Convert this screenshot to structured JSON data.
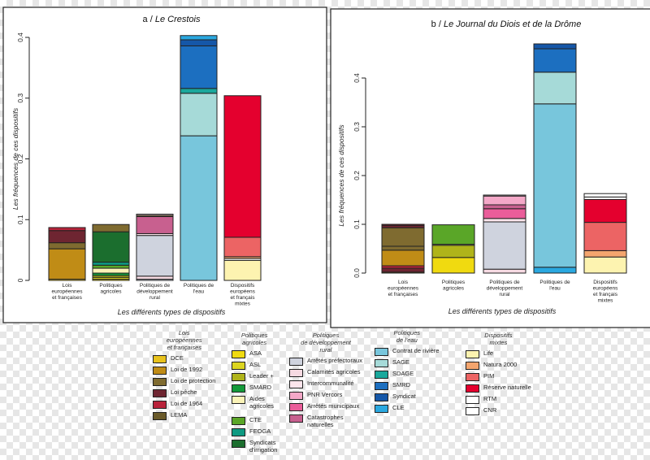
{
  "chart_data": [
    {
      "type": "stacked-bar",
      "title_prefix": "a / ",
      "title_italic": "Le Crestois",
      "ylabel": "Les fréquences de ces dispositifs",
      "xlabel": "Les différents types de dispositifs",
      "ylim": [
        0,
        0.42
      ],
      "yticks": [
        "0",
        "0.1",
        "0.2",
        "0.3",
        "0.4"
      ],
      "categories": [
        "Lois\neuropéennes\net françaises",
        "Politiques\nagricoles",
        "Politiques de\ndéveloppement\nrural",
        "Politiques de\nl'eau",
        "Dispositifs\neuropéens\net français\nmixtes"
      ],
      "stacks": [
        [
          [
            "DCE",
            0.002
          ],
          [
            "Loi de 1992",
            0.05
          ],
          [
            "Loi de protection",
            0.01
          ],
          [
            "Loi pêche",
            0.02
          ],
          [
            "Loi de 1964",
            0.005
          ]
        ],
        [
          [
            "ASA",
            0.002
          ],
          [
            "ASL",
            0.003
          ],
          [
            "Leader +",
            0.003
          ],
          [
            "SMARD",
            0.004
          ],
          [
            "Aides agricoles",
            0.008
          ],
          [
            "CTE",
            0.005
          ],
          [
            "FEOGA",
            0.005
          ],
          [
            "Syndicats d'irrigation",
            0.05
          ],
          [
            "Loi de protection",
            0.012
          ]
        ],
        [
          [
            "Arrêtés préfectoraux",
            0.002
          ],
          [
            "Calamités agricoles",
            0.005
          ],
          [
            "Arrêtés préfectoraux",
            0.067
          ],
          [
            "Intercommunalité",
            0.003
          ],
          [
            "Catastrophes naturelles",
            0.028
          ],
          [
            "Loi de protection",
            0.002
          ],
          [
            "Intercommunalité",
            0.002
          ]
        ],
        [
          [
            "Contrat de rivière",
            0.238
          ],
          [
            "SAGE",
            0.07
          ],
          [
            "SDAGE",
            0.008
          ],
          [
            "SMRD",
            0.07
          ],
          [
            "Syndicat",
            0.01
          ],
          [
            "CLE",
            0.007
          ]
        ],
        [
          [
            "Life",
            0.033
          ],
          [
            "RTM",
            0.003
          ],
          [
            "Natura 2000",
            0.003
          ],
          [
            "PIM",
            0.032
          ],
          [
            "Réserve naturelle",
            0.233
          ]
        ]
      ]
    },
    {
      "type": "stacked-bar",
      "title_prefix": "b / ",
      "title_italic": "Le Journal du Diois et de la Drôme",
      "ylabel": "Les fréquences de ces dispositifs",
      "xlabel": "Les différents types de dispositifs",
      "ylim": [
        0,
        0.42
      ],
      "yticks": [
        "0.0",
        "0.1",
        "0.2",
        "0.3",
        "0.4"
      ],
      "categories": [
        "Lois\neuropéennes\net françaises",
        "Politiques\nagricoles",
        "Politiques de\ndéveloppement\nrural",
        "Politiques de\nl'eau",
        "Dispositifs\neuropéens\net français\nmixtes"
      ],
      "stacks": [
        [
          [
            "DCE",
            0.002
          ],
          [
            "Loi pêche",
            0.008
          ],
          [
            "Loi de 1964",
            0.005
          ],
          [
            "Loi de 1992",
            0.032
          ],
          [
            "Loi de protection",
            0.008
          ],
          [
            "Loi de protection",
            0.038
          ],
          [
            "Loi pêche",
            0.005
          ],
          [
            "Loi de 1964",
            0.002
          ]
        ],
        [
          [
            "ASA",
            0.032
          ],
          [
            "Leader +",
            0.025
          ],
          [
            "Aides agricoles",
            0.002
          ],
          [
            "CTE",
            0.04
          ]
        ],
        [
          [
            "Calamités agricoles",
            0.008
          ],
          [
            "Arrêtés préfectoraux",
            0.097
          ],
          [
            "Intercommunalité",
            0.007
          ],
          [
            "Arrêtés municipaux",
            0.02
          ],
          [
            "Catastrophes naturelles",
            0.008
          ],
          [
            "PNR Vercors",
            0.018
          ],
          [
            "Calamités agricoles",
            0.002
          ]
        ],
        [
          [
            "CLE",
            0.012
          ],
          [
            "Contrat de rivière",
            0.335
          ],
          [
            "SAGE",
            0.065
          ],
          [
            "SMRD",
            0.048
          ],
          [
            "Syndicat",
            0.01
          ]
        ],
        [
          [
            "Life",
            0.033
          ],
          [
            "Natura 2000",
            0.013
          ],
          [
            "PIM",
            0.058
          ],
          [
            "Réserve naturelle",
            0.047
          ],
          [
            "CNR",
            0.005
          ],
          [
            "RTM",
            0.007
          ]
        ]
      ]
    }
  ],
  "legend": [
    {
      "title": "Lois\neuropéennes\net françaises",
      "items": [
        {
          "label": "DCE",
          "color": "#e8c21c"
        },
        {
          "label": "Loi de 1992",
          "color": "#c08c16"
        },
        {
          "label": "Loi de protection",
          "color": "#7f6b30"
        },
        {
          "label": "Loi pêche",
          "color": "#6e2531"
        },
        {
          "label": "Loi de 1964",
          "color": "#b8223a"
        },
        {
          "label": "LEMA",
          "color": "#6a5a2a"
        }
      ]
    },
    {
      "title": "Politiques\nagricoles",
      "items": [
        {
          "label": "ASA",
          "color": "#f0da10"
        },
        {
          "label": "ASL",
          "color": "#dcd520"
        },
        {
          "label": "Leader +",
          "color": "#b0b41a"
        },
        {
          "label": "SMARD",
          "color": "#149a3a"
        },
        {
          "label": "Aides\nagricoles",
          "color": "#fbf3b8"
        },
        {
          "label": "CTE",
          "color": "#5aa628"
        },
        {
          "label": "FEOGA",
          "color": "#0e9a82"
        },
        {
          "label": "Syndicats\nd'irrigation",
          "color": "#1b6e2e"
        }
      ]
    },
    {
      "title": "Politiques\nde développement\nrural",
      "items": [
        {
          "label": "Arrêtés préfectoraux",
          "color": "#cfd3de"
        },
        {
          "label": "Calamités agricoles",
          "color": "#f6dae2"
        },
        {
          "label": "Intercommunalité",
          "color": "#fde5ec"
        },
        {
          "label": "PNR Vercors",
          "color": "#f4a8c8"
        },
        {
          "label": "Arrêtés municipaux",
          "color": "#ea5d9a"
        },
        {
          "label": "Catastrophes\nnaturelles",
          "color": "#c8608f"
        }
      ]
    },
    {
      "title": "Politiques\nde l'eau",
      "items": [
        {
          "label": "Contrat de rivière",
          "color": "#78c6dc"
        },
        {
          "label": "SAGE",
          "color": "#a6dad8"
        },
        {
          "label": "SDAGE",
          "color": "#1aa89c"
        },
        {
          "label": "SMRD",
          "color": "#1c6fc0"
        },
        {
          "label": "Syndicat",
          "color": "#1557a8"
        },
        {
          "label": "CLE",
          "color": "#2aa8e0"
        }
      ]
    },
    {
      "title": "Dispositifs\nmixtes",
      "items": [
        {
          "label": "Life",
          "color": "#fdf3b0"
        },
        {
          "label": "Natura 2000",
          "color": "#f4a56e"
        },
        {
          "label": "PIM",
          "color": "#ec6464"
        },
        {
          "label": "Réserve naturelle",
          "color": "#e4002e"
        },
        {
          "label": "RTM",
          "color": "#ffffff"
        },
        {
          "label": "CNR",
          "color": "#ffffff"
        }
      ]
    }
  ]
}
